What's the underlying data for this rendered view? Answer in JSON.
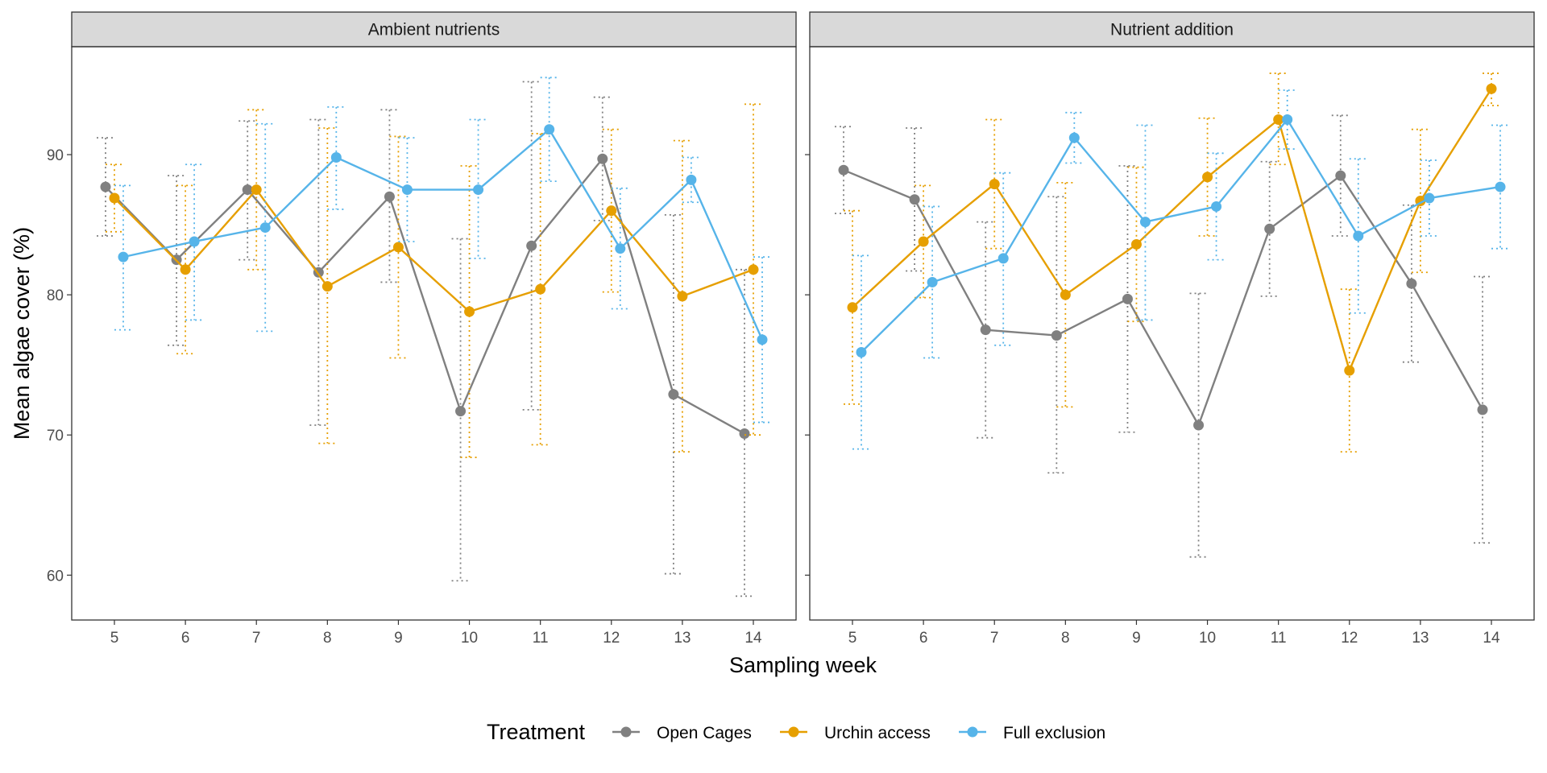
{
  "chart_data": {
    "type": "line",
    "xlabel": "Sampling week",
    "ylabel": "Mean algae cover (%)",
    "x": [
      5,
      6,
      7,
      8,
      9,
      10,
      11,
      12,
      13,
      14
    ],
    "ylim": [
      56.8,
      97.7
    ],
    "yticks": [
      60,
      70,
      80,
      90
    ],
    "grid": false,
    "error_bars": "dotted",
    "legend": {
      "title": "Treatment",
      "position": "bottom",
      "entries": [
        "Open Cages",
        "Urchin access",
        "Full exclusion"
      ]
    },
    "colors": {
      "Open Cages": "#808080",
      "Urchin access": "#E69F00",
      "Full exclusion": "#56B4E9"
    },
    "panels": [
      {
        "title": "Ambient nutrients",
        "series": [
          {
            "name": "Open Cages",
            "values": [
              87.7,
              82.5,
              87.5,
              81.6,
              87.0,
              71.7,
              83.5,
              89.7,
              72.9,
              70.1
            ],
            "lower": [
              84.2,
              76.4,
              82.5,
              70.7,
              80.9,
              59.6,
              71.8,
              85.3,
              60.1,
              58.5
            ],
            "upper": [
              91.2,
              88.5,
              92.4,
              92.5,
              93.2,
              84.0,
              95.2,
              94.1,
              85.7,
              81.8
            ]
          },
          {
            "name": "Urchin access",
            "values": [
              86.9,
              81.8,
              87.5,
              80.6,
              83.4,
              78.8,
              80.4,
              86.0,
              79.9,
              81.8
            ],
            "lower": [
              84.5,
              75.8,
              81.8,
              69.4,
              75.5,
              68.4,
              69.3,
              80.2,
              68.8,
              70.0
            ],
            "upper": [
              89.3,
              87.8,
              93.2,
              91.9,
              91.3,
              89.2,
              91.5,
              91.8,
              91.0,
              93.6
            ]
          },
          {
            "name": "Full exclusion",
            "values": [
              82.7,
              83.8,
              84.8,
              89.8,
              87.5,
              87.5,
              91.8,
              83.3,
              88.2,
              76.8
            ],
            "lower": [
              77.5,
              78.2,
              77.4,
              86.1,
              83.8,
              82.6,
              88.1,
              79.0,
              86.6,
              70.9
            ],
            "upper": [
              87.8,
              89.3,
              92.2,
              93.4,
              91.2,
              92.5,
              95.5,
              87.6,
              89.8,
              82.7
            ]
          }
        ]
      },
      {
        "title": "Nutrient addition",
        "series": [
          {
            "name": "Open Cages",
            "values": [
              88.9,
              86.8,
              77.5,
              77.1,
              79.7,
              70.7,
              84.7,
              88.5,
              80.8,
              71.8
            ],
            "lower": [
              85.8,
              81.7,
              69.8,
              67.3,
              70.2,
              61.3,
              79.9,
              84.2,
              75.2,
              62.3
            ],
            "upper": [
              92.0,
              91.9,
              85.2,
              87.0,
              89.2,
              80.1,
              89.5,
              92.8,
              86.4,
              81.3
            ]
          },
          {
            "name": "Urchin access",
            "values": [
              79.1,
              83.8,
              87.9,
              80.0,
              83.6,
              88.4,
              92.5,
              74.6,
              86.7,
              94.7
            ],
            "lower": [
              72.2,
              79.8,
              83.3,
              72.0,
              78.1,
              84.2,
              89.3,
              68.8,
              81.6,
              93.5
            ],
            "upper": [
              86.0,
              87.8,
              92.5,
              88.0,
              89.1,
              92.6,
              95.8,
              80.4,
              91.8,
              95.8
            ]
          },
          {
            "name": "Full exclusion",
            "values": [
              75.9,
              80.9,
              82.6,
              91.2,
              85.2,
              86.3,
              92.5,
              84.2,
              86.9,
              87.7
            ],
            "lower": [
              69.0,
              75.5,
              76.4,
              89.4,
              78.2,
              82.5,
              90.4,
              78.7,
              84.2,
              83.3
            ],
            "upper": [
              82.8,
              86.3,
              88.7,
              93.0,
              92.1,
              90.1,
              94.6,
              89.7,
              89.6,
              92.1
            ]
          }
        ]
      }
    ]
  }
}
